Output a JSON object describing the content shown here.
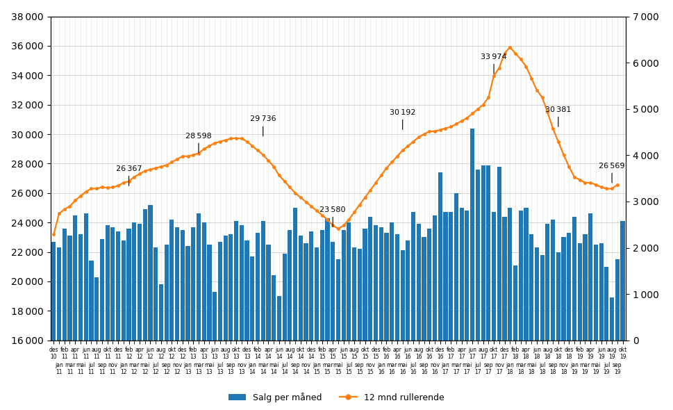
{
  "chart_data": {
    "type": "bar",
    "categories": [
      "des\n10",
      "jan\n11",
      "feb\n11",
      "mar\n11",
      "apr\n11",
      "mai\n11",
      "jun\n11",
      "jul\n11",
      "aug\n11",
      "sep\n11",
      "okt\n11",
      "nov\n11",
      "des\n11",
      "jan\n12",
      "feb\n12",
      "mar\n12",
      "apr\n12",
      "mai\n12",
      "jun\n12",
      "jul\n12",
      "aug\n12",
      "sep\n12",
      "okt\n12",
      "nov\n12",
      "des\n12",
      "jan\n13",
      "feb\n13",
      "mar\n13",
      "apr\n13",
      "mai\n13",
      "jun\n13",
      "jul\n13",
      "aug\n13",
      "sep\n13",
      "okt\n13",
      "nov\n13",
      "des\n13",
      "jan\n14",
      "feb\n14",
      "mar\n14",
      "apr\n14",
      "mai\n14",
      "jun\n14",
      "jul\n14",
      "aug\n14",
      "sep\n14",
      "okt\n14",
      "nov\n14",
      "des\n14",
      "jan\n15",
      "feb\n15",
      "mar\n15",
      "apr\n15",
      "mai\n15",
      "jun\n15",
      "jul\n15",
      "aug\n15",
      "sep\n15",
      "okt\n15",
      "nov\n15",
      "des\n15",
      "jan\n16",
      "feb\n16",
      "mar\n16",
      "apr\n16",
      "mai\n16",
      "jun\n16",
      "jul\n16",
      "aug\n16",
      "sep\n16",
      "okt\n16",
      "nov\n16",
      "des\n16",
      "jan\n17",
      "feb\n17",
      "mar\n17",
      "apr\n17",
      "mai\n17",
      "jun\n17",
      "jul\n17",
      "aug\n17",
      "sep\n17",
      "okt\n17",
      "nov\n17",
      "des\n17",
      "jan\n18",
      "feb\n18",
      "mar\n18",
      "apr\n18",
      "mai\n18",
      "jun\n18",
      "jul\n18",
      "aug\n18",
      "sep\n18",
      "okt\n18",
      "nov\n18",
      "des\n18",
      "jan\n19",
      "feb\n19",
      "mar\n19",
      "apr\n19",
      "mai\n19",
      "jun\n19",
      "jul\n19",
      "aug\n19",
      "sep\n19",
      "okt\n19"
    ],
    "series": [
      {
        "name": "Salg per måned",
        "type": "bar",
        "values": [
          22700,
          22300,
          23600,
          23100,
          24500,
          23200,
          24600,
          21400,
          20300,
          22900,
          23800,
          23700,
          23400,
          22800,
          23600,
          24000,
          23900,
          24900,
          25200,
          22300,
          19800,
          22500,
          24200,
          23700,
          23500,
          22400,
          23700,
          24600,
          24000,
          22500,
          19300,
          22700,
          23100,
          23200,
          24100,
          23800,
          22800,
          21700,
          23300,
          24100,
          22500,
          20400,
          19000,
          21900,
          23500,
          25000,
          23100,
          22600,
          23400,
          22300,
          23500,
          24300,
          22700,
          21500,
          23500,
          24000,
          22300,
          22200,
          23600,
          24400,
          23800,
          23700,
          23300,
          24000,
          23200,
          22100,
          22800,
          24700,
          23900,
          23000,
          23600,
          24500,
          27400,
          24700,
          24700,
          26000,
          25000,
          24800,
          30400,
          27600,
          27900,
          27900,
          24700,
          27800,
          24400,
          25000,
          21100,
          24800,
          25000,
          23200,
          22300,
          21800,
          23900,
          24200,
          22000,
          23000,
          23300,
          24400,
          22600,
          23200,
          24600,
          22500,
          22600,
          21000,
          18900,
          21500,
          24100
        ]
      },
      {
        "name": "12 mnd rullerende",
        "type": "line",
        "marker": "o",
        "values": [
          23200,
          24600,
          24900,
          25100,
          25500,
          25800,
          26100,
          26300,
          26300,
          26400,
          26367,
          26400,
          26500,
          26700,
          26800,
          27100,
          27300,
          27500,
          27600,
          27700,
          27800,
          27900,
          28100,
          28300,
          28500,
          28500,
          28598,
          28700,
          29000,
          29200,
          29400,
          29500,
          29600,
          29700,
          29736,
          29700,
          29500,
          29200,
          28900,
          28600,
          28200,
          27800,
          27200,
          26800,
          26400,
          26000,
          25700,
          25400,
          25100,
          24800,
          24500,
          24200,
          23800,
          23580,
          23800,
          24200,
          24700,
          25200,
          25700,
          26200,
          26700,
          27200,
          27700,
          28100,
          28500,
          28900,
          29200,
          29500,
          29800,
          30000,
          30192,
          30200,
          30300,
          30400,
          30500,
          30700,
          30900,
          31100,
          31400,
          31700,
          32000,
          32500,
          33974,
          34500,
          35500,
          35900,
          35500,
          35100,
          34600,
          33800,
          33000,
          32500,
          31500,
          30381,
          29500,
          28600,
          27800,
          27100,
          26900,
          26700,
          26700,
          26569,
          26400,
          26300,
          26300,
          26569,
          null
        ]
      }
    ],
    "ylim": [
      16000,
      38000
    ],
    "yticks": [
      {
        "value": 16000,
        "label": "16 000"
      },
      {
        "value": 18000,
        "label": "18 000"
      },
      {
        "value": 20000,
        "label": "20 000"
      },
      {
        "value": 22000,
        "label": "22 000"
      },
      {
        "value": 24000,
        "label": "24 000"
      },
      {
        "value": 26000,
        "label": "26 000"
      },
      {
        "value": 28000,
        "label": "28 000"
      },
      {
        "value": 30000,
        "label": "30 000"
      },
      {
        "value": 32000,
        "label": "32 000"
      },
      {
        "value": 34000,
        "label": "34 000"
      },
      {
        "value": 36000,
        "label": "36 000"
      },
      {
        "value": 38000,
        "label": "38 000"
      }
    ],
    "y2lim": [
      0,
      7000
    ],
    "y2ticks": [
      0,
      {
        "value": 1000,
        "label": "1 000"
      },
      {
        "value": 2000,
        "label": "2 000"
      },
      {
        "value": 3000,
        "label": "3 000"
      },
      {
        "value": 4000,
        "label": "4 000"
      },
      {
        "value": 5000,
        "label": "5 000"
      },
      {
        "value": 6000,
        "label": "6 000"
      },
      {
        "value": 7000,
        "label": "7 000"
      }
    ],
    "annotations": [
      {
        "text": "26 367",
        "category": "feb\n12",
        "y": 26367
      },
      {
        "text": "28 598",
        "category": "mar\n13",
        "y": 28598
      },
      {
        "text": "29 736",
        "category": "mar\n14",
        "y": 29736
      },
      {
        "text": "23 580",
        "category": "apr\n15",
        "y": 23580
      },
      {
        "text": "30 192",
        "category": "mai\n16",
        "y": 30192
      },
      {
        "text": "33 974",
        "category": "okt\n17",
        "y": 33974
      },
      {
        "text": "30 381",
        "category": "okt\n18",
        "y": 30381
      },
      {
        "text": "26 569",
        "category": "aug\n19",
        "y": 26569
      }
    ],
    "grid": true,
    "legend": "lower center"
  }
}
